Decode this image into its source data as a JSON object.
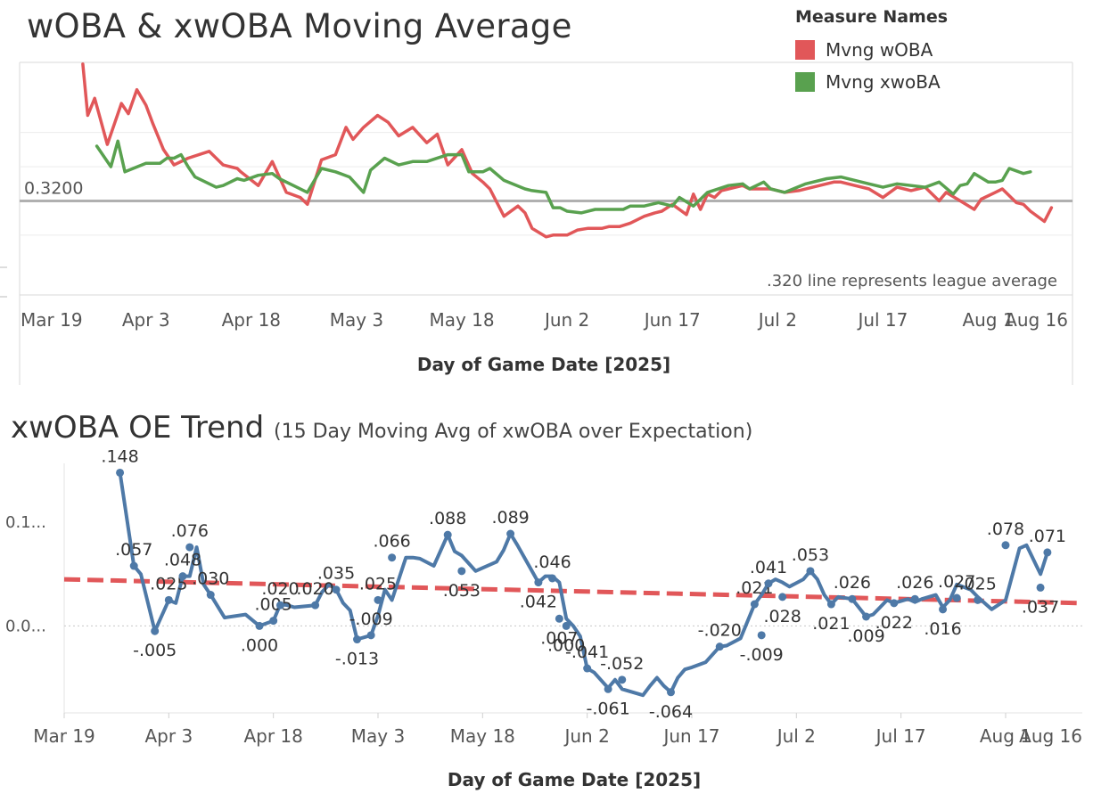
{
  "chart_data": [
    {
      "type": "line",
      "title": "wOBA & xwOBA Moving Average",
      "xlabel": "Day of Game Date [2025]",
      "ylabel": "",
      "ylim": [
        0.265,
        0.401
      ],
      "xlim": [
        -3,
        147
      ],
      "x_tick_labels": [
        "Mar 19",
        "Apr 3",
        "Apr 18",
        "May 3",
        "May 18",
        "Jun 2",
        "Jun 17",
        "Jul 2",
        "Jul 17",
        "Aug 1",
        "Aug 16"
      ],
      "x_tick_days": [
        0,
        15,
        30,
        45,
        60,
        75,
        90,
        105,
        120,
        135,
        150
      ],
      "reference_line": {
        "value": 0.32,
        "label": "0.3200"
      },
      "annotation": ".320 line represents league average",
      "legend_title": "Measure Names",
      "series": [
        {
          "name": "Mvng wOBA",
          "color": "#e15759",
          "x": [
            6,
            6.7,
            7.7,
            9.5,
            11.5,
            12.5,
            13.7,
            15,
            16,
            17.5,
            19,
            21,
            24,
            26,
            28,
            28.5,
            31,
            33,
            35,
            37,
            38,
            40,
            42,
            43.5,
            44.5,
            46,
            48,
            49.5,
            51,
            53,
            55,
            56.5,
            58,
            60,
            61.5,
            63,
            64,
            66,
            68,
            69,
            70,
            72,
            73,
            75,
            76.5,
            78,
            80,
            81,
            82.5,
            84,
            86,
            87.5,
            88.5,
            90,
            92,
            93,
            94,
            95,
            96,
            97,
            98,
            100,
            101,
            104,
            106,
            108,
            110,
            113,
            114,
            116,
            118,
            120,
            122,
            124,
            126,
            128,
            129,
            131,
            133,
            134,
            136,
            137,
            139,
            140,
            141,
            143,
            144
          ],
          "y": [
            0.4,
            0.37,
            0.38,
            0.353,
            0.377,
            0.371,
            0.385,
            0.376,
            0.365,
            0.35,
            0.341,
            0.345,
            0.349,
            0.341,
            0.339,
            0.337,
            0.329,
            0.343,
            0.325,
            0.322,
            0.318,
            0.344,
            0.347,
            0.363,
            0.356,
            0.363,
            0.37,
            0.366,
            0.358,
            0.363,
            0.354,
            0.359,
            0.341,
            0.35,
            0.336,
            0.331,
            0.327,
            0.311,
            0.317,
            0.313,
            0.304,
            0.299,
            0.3,
            0.3,
            0.303,
            0.304,
            0.304,
            0.305,
            0.305,
            0.307,
            0.311,
            0.313,
            0.314,
            0.318,
            0.312,
            0.324,
            0.315,
            0.324,
            0.322,
            0.326,
            0.327,
            0.329,
            0.327,
            0.327,
            0.325,
            0.326,
            0.328,
            0.331,
            0.331,
            0.329,
            0.327,
            0.322,
            0.328,
            0.326,
            0.328,
            0.32,
            0.325,
            0.32,
            0.315,
            0.321,
            0.325,
            0.327,
            0.319,
            0.318,
            0.314,
            0.308,
            0.316
          ]
        },
        {
          "name": "Mvng xwoBA",
          "color": "#59a14f",
          "x": [
            8,
            10,
            11,
            12,
            15,
            17,
            18,
            19,
            20,
            21,
            22,
            25,
            26,
            28,
            29,
            31,
            33,
            34,
            36,
            38,
            40,
            42,
            44,
            46,
            47,
            49,
            51,
            53,
            55,
            58,
            60,
            61,
            63,
            64,
            66,
            69,
            70,
            72,
            73,
            74,
            75,
            77,
            79,
            81,
            83,
            84,
            86,
            88,
            90,
            91,
            93,
            95,
            98,
            100,
            101,
            103,
            104,
            106,
            109,
            112,
            114,
            116,
            118,
            120,
            122,
            124,
            126,
            128,
            130,
            131,
            132,
            133,
            135,
            136,
            137,
            138,
            140,
            141
          ],
          "y": [
            0.352,
            0.34,
            0.355,
            0.337,
            0.342,
            0.342,
            0.345,
            0.345,
            0.347,
            0.34,
            0.334,
            0.328,
            0.329,
            0.333,
            0.332,
            0.335,
            0.336,
            0.333,
            0.329,
            0.325,
            0.339,
            0.337,
            0.334,
            0.325,
            0.338,
            0.345,
            0.341,
            0.343,
            0.343,
            0.347,
            0.347,
            0.337,
            0.337,
            0.339,
            0.332,
            0.327,
            0.326,
            0.325,
            0.316,
            0.316,
            0.314,
            0.313,
            0.315,
            0.315,
            0.315,
            0.317,
            0.317,
            0.319,
            0.317,
            0.322,
            0.317,
            0.325,
            0.329,
            0.33,
            0.327,
            0.331,
            0.327,
            0.325,
            0.33,
            0.333,
            0.334,
            0.332,
            0.33,
            0.328,
            0.33,
            0.329,
            0.328,
            0.331,
            0.324,
            0.329,
            0.33,
            0.336,
            0.331,
            0.331,
            0.332,
            0.339,
            0.336,
            0.337
          ]
        }
      ]
    },
    {
      "type": "line",
      "title": "xwOBA OE Trend",
      "subtitle": "(15 Day Moving Avg of xwOBA over Expectation)",
      "xlabel": "Day of Game Date [2025]",
      "ylabel": "",
      "ylim": [
        -0.084,
        0.157
      ],
      "xlim": [
        0,
        146
      ],
      "x_tick_labels": [
        "Mar 19",
        "Apr 3",
        "Apr 18",
        "May 3",
        "May 18",
        "Jun 2",
        "Jun 17",
        "Jul 2",
        "Jul 17",
        "Aug 1",
        "Aug 16"
      ],
      "x_tick_days": [
        0,
        15,
        30,
        45,
        60,
        75,
        90,
        105,
        120,
        135,
        150
      ],
      "y_tick_labels": [
        "0.1...",
        "0.0..."
      ],
      "y_tick_values": [
        0.1,
        0.0
      ],
      "trend_line": {
        "start": 0.045,
        "end": 0.022,
        "color": "#e15759"
      },
      "series": [
        {
          "name": "xwOBA OE",
          "color": "#4e79a7",
          "x": [
            8,
            10,
            11,
            13,
            15,
            16,
            17,
            18,
            19,
            20,
            21,
            23,
            26,
            28,
            30,
            31,
            32,
            33,
            36,
            37,
            38,
            39,
            40,
            41,
            42,
            44,
            45,
            46,
            47,
            49,
            50,
            51,
            53,
            55,
            56,
            57,
            59,
            62,
            63,
            64,
            65,
            68,
            69,
            70,
            71,
            72,
            73,
            74,
            75,
            76,
            78,
            79,
            80,
            83,
            84,
            85,
            86,
            87,
            88,
            89,
            90,
            92,
            94,
            95,
            97,
            99,
            100,
            101,
            102,
            103,
            104,
            106,
            107,
            108,
            109,
            110,
            111,
            113,
            115,
            116,
            117,
            118,
            119,
            121,
            122,
            123,
            125,
            126,
            127,
            128,
            130,
            131,
            133,
            135,
            137,
            138,
            140,
            141
          ],
          "y": [
            0.148,
            0.058,
            0.05,
            -0.005,
            0.025,
            0.022,
            0.048,
            0.048,
            0.076,
            0.04,
            0.03,
            0.008,
            0.011,
            0.0,
            0.005,
            0.021,
            0.02,
            0.018,
            0.02,
            0.033,
            0.04,
            0.035,
            0.022,
            0.015,
            -0.013,
            -0.009,
            0.01,
            0.035,
            0.025,
            0.066,
            0.066,
            0.065,
            0.058,
            0.088,
            0.072,
            0.068,
            0.053,
            0.062,
            0.073,
            0.089,
            0.078,
            0.042,
            0.048,
            0.048,
            0.042,
            0.007,
            0.0,
            -0.01,
            -0.041,
            -0.045,
            -0.06,
            -0.052,
            -0.061,
            -0.067,
            -0.058,
            -0.05,
            -0.058,
            -0.064,
            -0.05,
            -0.042,
            -0.04,
            -0.035,
            -0.02,
            -0.019,
            -0.012,
            0.021,
            0.03,
            0.041,
            0.045,
            0.042,
            0.038,
            0.045,
            0.053,
            0.045,
            0.03,
            0.021,
            0.028,
            0.026,
            0.009,
            0.011,
            0.018,
            0.025,
            0.022,
            0.026,
            0.023,
            0.026,
            0.03,
            0.018,
            0.025,
            0.04,
            0.035,
            0.028,
            0.016,
            0.025,
            0.075,
            0.078,
            0.05,
            0.071
          ],
          "data_labels": [
            {
              "x": 8,
              "y": 0.148,
              "text": ".148"
            },
            {
              "x": 10,
              "y": 0.058,
              "text": ".057"
            },
            {
              "x": 13,
              "y": -0.005,
              "text": "-.005"
            },
            {
              "x": 15,
              "y": 0.025,
              "text": ".025"
            },
            {
              "x": 17,
              "y": 0.048,
              "text": ".048"
            },
            {
              "x": 18,
              "y": 0.076,
              "text": ".076"
            },
            {
              "x": 21,
              "y": 0.03,
              "text": ".030"
            },
            {
              "x": 28,
              "y": 0.0,
              "text": ".000"
            },
            {
              "x": 30,
              "y": 0.005,
              "text": ".005"
            },
            {
              "x": 31,
              "y": 0.02,
              "text": ".020"
            },
            {
              "x": 36,
              "y": 0.02,
              "text": ".020"
            },
            {
              "x": 39,
              "y": 0.035,
              "text": ".035"
            },
            {
              "x": 42,
              "y": -0.013,
              "text": "-.013"
            },
            {
              "x": 44,
              "y": -0.009,
              "text": "-.009"
            },
            {
              "x": 45,
              "y": 0.025,
              "text": ".025"
            },
            {
              "x": 47,
              "y": 0.066,
              "text": ".066"
            },
            {
              "x": 55,
              "y": 0.088,
              "text": ".088"
            },
            {
              "x": 57,
              "y": 0.053,
              "text": ".053"
            },
            {
              "x": 64,
              "y": 0.089,
              "text": ".089"
            },
            {
              "x": 68,
              "y": 0.042,
              "text": ".042"
            },
            {
              "x": 70,
              "y": 0.046,
              "text": ".046"
            },
            {
              "x": 71,
              "y": 0.007,
              "text": ".007"
            },
            {
              "x": 72,
              "y": 0.0,
              "text": ".000"
            },
            {
              "x": 75,
              "y": -0.041,
              "text": "-.041"
            },
            {
              "x": 78,
              "y": -0.061,
              "text": "-.061"
            },
            {
              "x": 80,
              "y": -0.052,
              "text": "-.052"
            },
            {
              "x": 87,
              "y": -0.064,
              "text": "-.064"
            },
            {
              "x": 94,
              "y": -0.02,
              "text": "-.020"
            },
            {
              "x": 99,
              "y": 0.021,
              "text": ".021"
            },
            {
              "x": 100,
              "y": -0.009,
              "text": "-.009"
            },
            {
              "x": 101,
              "y": 0.041,
              "text": ".041"
            },
            {
              "x": 103,
              "y": 0.028,
              "text": ".028"
            },
            {
              "x": 107,
              "y": 0.053,
              "text": ".053"
            },
            {
              "x": 110,
              "y": 0.021,
              "text": ".021"
            },
            {
              "x": 113,
              "y": 0.026,
              "text": ".026"
            },
            {
              "x": 115,
              "y": 0.009,
              "text": ".009"
            },
            {
              "x": 119,
              "y": 0.022,
              "text": ".022"
            },
            {
              "x": 122,
              "y": 0.026,
              "text": ".026"
            },
            {
              "x": 126,
              "y": 0.016,
              "text": ".016"
            },
            {
              "x": 128,
              "y": 0.027,
              "text": ".027"
            },
            {
              "x": 131,
              "y": 0.025,
              "text": ".025"
            },
            {
              "x": 135,
              "y": 0.078,
              "text": ".078"
            },
            {
              "x": 140,
              "y": 0.037,
              "text": ".037"
            },
            {
              "x": 141,
              "y": 0.071,
              "text": ".071"
            }
          ]
        }
      ]
    }
  ]
}
